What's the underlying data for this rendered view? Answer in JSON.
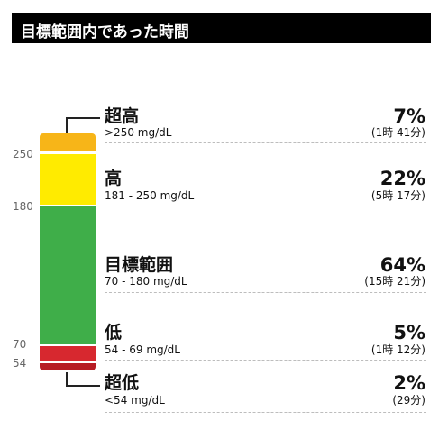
{
  "title": "目標範囲内であった時間",
  "ticks": [
    "250",
    "180",
    "70",
    "54"
  ],
  "categories": [
    {
      "label": "超高",
      "range": ">250 mg/dL",
      "percent": "7%",
      "duration": "(1時 41分)",
      "color": "#F7B518"
    },
    {
      "label": "高",
      "range": "181 - 250 mg/dL",
      "percent": "22%",
      "duration": "(5時 17分)",
      "color": "#FFEB00"
    },
    {
      "label": "目標範囲",
      "range": "70 - 180 mg/dL",
      "percent": "64%",
      "duration": "(15時 21分)",
      "color": "#3FAE49"
    },
    {
      "label": "低",
      "range": "54 - 69 mg/dL",
      "percent": "5%",
      "duration": "(1時 12分)",
      "color": "#D7282F"
    },
    {
      "label": "超低",
      "range": "<54 mg/dL",
      "percent": "2%",
      "duration": "(29分)",
      "color": "#B71C24"
    }
  ]
}
